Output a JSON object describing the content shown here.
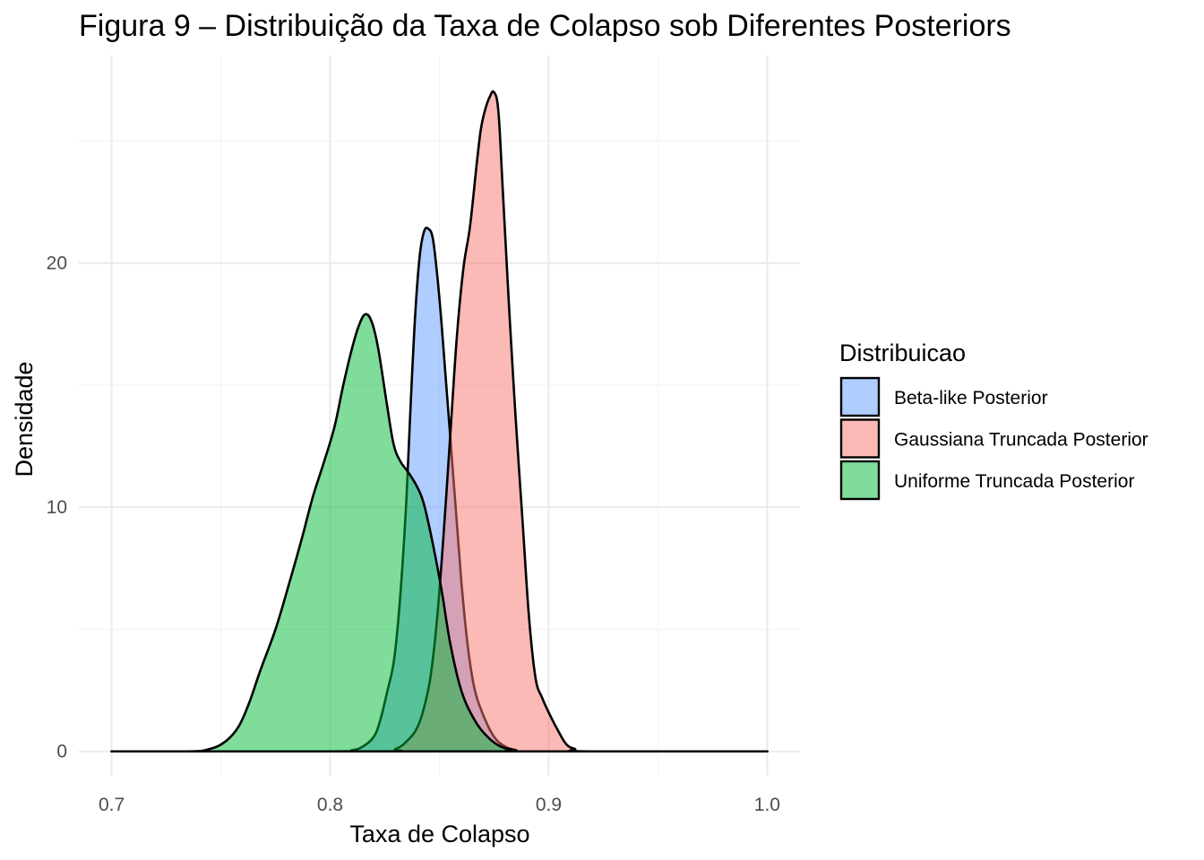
{
  "chart_data": {
    "type": "area",
    "title": "Figura 9 – Distribuição da Taxa de Colapso sob Diferentes Posteriors",
    "xlabel": "Taxa de Colapso",
    "ylabel": "Densidade",
    "xlim": [
      0.685,
      1.015
    ],
    "ylim": [
      -1.0,
      28.5
    ],
    "x_ticks": [
      {
        "value": 0.7,
        "label": "0.7"
      },
      {
        "value": 0.8,
        "label": "0.8"
      },
      {
        "value": 0.9,
        "label": "0.9"
      },
      {
        "value": 1.0,
        "label": "1.0"
      }
    ],
    "y_ticks": [
      {
        "value": 0,
        "label": "0"
      },
      {
        "value": 10,
        "label": "10"
      },
      {
        "value": 20,
        "label": "20"
      }
    ],
    "x_minor": [
      0.75,
      0.85,
      0.95
    ],
    "y_minor": [
      5,
      15,
      25
    ],
    "grid": true,
    "fill_opacity": 0.5,
    "legend": {
      "title": "Distribuicao",
      "position": "right"
    },
    "series": [
      {
        "name": "Beta-like Posterior",
        "color": "#619CFF",
        "points": [
          [
            0.7,
            0
          ],
          [
            0.8,
            0
          ],
          [
            0.81,
            0.05
          ],
          [
            0.815,
            0.2
          ],
          [
            0.82,
            0.6
          ],
          [
            0.823,
            1.3
          ],
          [
            0.826,
            2.4
          ],
          [
            0.829,
            3.6
          ],
          [
            0.831,
            5.2
          ],
          [
            0.833,
            7.5
          ],
          [
            0.835,
            10.5
          ],
          [
            0.837,
            14.5
          ],
          [
            0.839,
            18.0
          ],
          [
            0.841,
            20.3
          ],
          [
            0.843,
            21.3
          ],
          [
            0.845,
            21.4
          ],
          [
            0.847,
            21.0
          ],
          [
            0.849,
            19.5
          ],
          [
            0.851,
            17.5
          ],
          [
            0.854,
            14.0
          ],
          [
            0.857,
            10.5
          ],
          [
            0.86,
            7.0
          ],
          [
            0.863,
            4.3
          ],
          [
            0.866,
            2.6
          ],
          [
            0.87,
            1.5
          ],
          [
            0.875,
            0.6
          ],
          [
            0.88,
            0.2
          ],
          [
            0.885,
            0.05
          ],
          [
            0.89,
            0
          ],
          [
            1.0,
            0
          ]
        ]
      },
      {
        "name": "Gaussiana Truncada Posterior",
        "color": "#F8766D",
        "points": [
          [
            0.7,
            0
          ],
          [
            0.82,
            0
          ],
          [
            0.83,
            0.1
          ],
          [
            0.836,
            0.5
          ],
          [
            0.84,
            1.0
          ],
          [
            0.843,
            1.8
          ],
          [
            0.846,
            3.1
          ],
          [
            0.849,
            5.5
          ],
          [
            0.852,
            9.0
          ],
          [
            0.855,
            13.0
          ],
          [
            0.858,
            17.0
          ],
          [
            0.861,
            19.8
          ],
          [
            0.864,
            21.5
          ],
          [
            0.867,
            24.0
          ],
          [
            0.869,
            25.5
          ],
          [
            0.871,
            26.3
          ],
          [
            0.873,
            26.8
          ],
          [
            0.875,
            27.0
          ],
          [
            0.877,
            26.2
          ],
          [
            0.879,
            23.0
          ],
          [
            0.882,
            18.0
          ],
          [
            0.885,
            13.5
          ],
          [
            0.888,
            9.5
          ],
          [
            0.891,
            5.5
          ],
          [
            0.894,
            3.0
          ],
          [
            0.897,
            2.2
          ],
          [
            0.9,
            1.6
          ],
          [
            0.904,
            0.9
          ],
          [
            0.908,
            0.3
          ],
          [
            0.912,
            0.1
          ],
          [
            0.918,
            0
          ],
          [
            1.0,
            0
          ]
        ]
      },
      {
        "name": "Uniforme Truncada Posterior",
        "color": "#00BA38",
        "points": [
          [
            0.7,
            0
          ],
          [
            0.735,
            0
          ],
          [
            0.745,
            0.1
          ],
          [
            0.752,
            0.4
          ],
          [
            0.758,
            1.0
          ],
          [
            0.763,
            2.0
          ],
          [
            0.768,
            3.3
          ],
          [
            0.775,
            5.0
          ],
          [
            0.781,
            6.8
          ],
          [
            0.787,
            8.7
          ],
          [
            0.792,
            10.4
          ],
          [
            0.797,
            11.8
          ],
          [
            0.802,
            13.3
          ],
          [
            0.806,
            15.0
          ],
          [
            0.81,
            16.5
          ],
          [
            0.813,
            17.4
          ],
          [
            0.816,
            17.9
          ],
          [
            0.819,
            17.6
          ],
          [
            0.822,
            16.5
          ],
          [
            0.826,
            14.2
          ],
          [
            0.829,
            12.6
          ],
          [
            0.832,
            11.9
          ],
          [
            0.836,
            11.4
          ],
          [
            0.84,
            10.8
          ],
          [
            0.843,
            10.1
          ],
          [
            0.847,
            8.5
          ],
          [
            0.851,
            6.6
          ],
          [
            0.855,
            4.4
          ],
          [
            0.86,
            2.5
          ],
          [
            0.866,
            1.3
          ],
          [
            0.872,
            0.6
          ],
          [
            0.878,
            0.2
          ],
          [
            0.885,
            0.05
          ],
          [
            0.89,
            0
          ],
          [
            1.0,
            0
          ]
        ]
      }
    ]
  }
}
